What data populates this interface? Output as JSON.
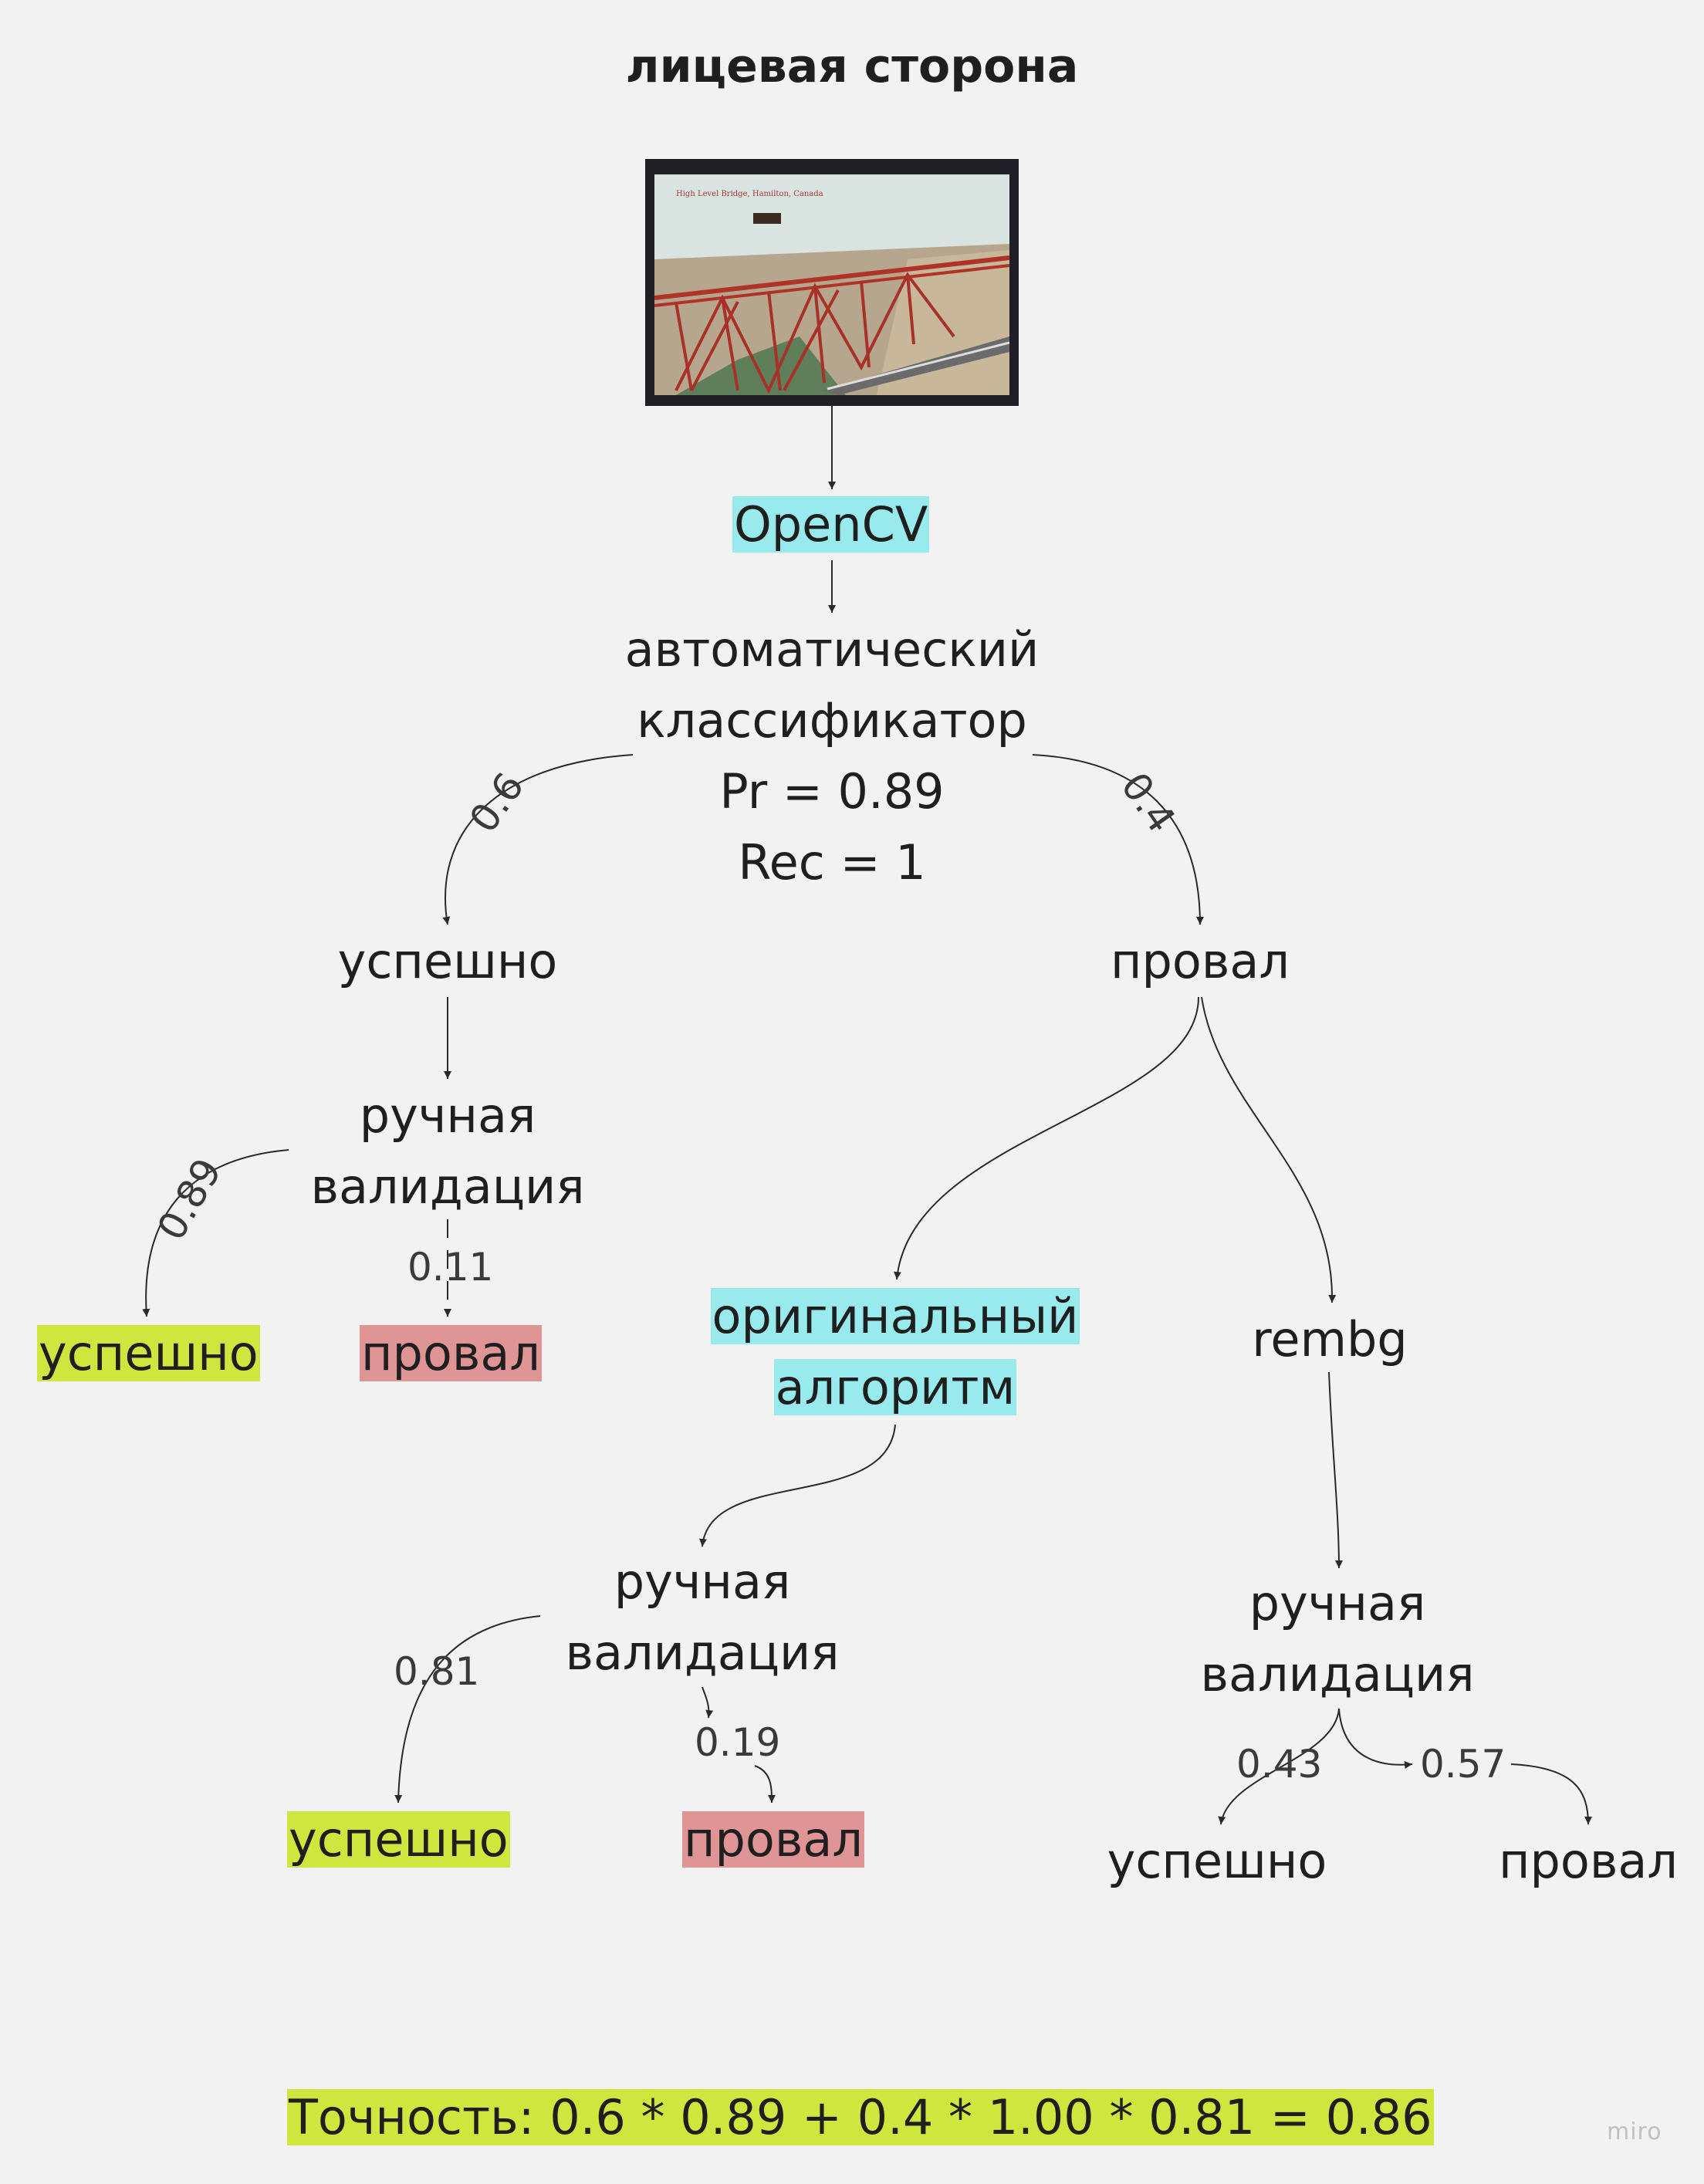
{
  "title": "лицевая сторона",
  "image": {
    "caption": "High Level Bridge, Hamilton, Canada"
  },
  "nodes": {
    "opencv": "OpenCV",
    "classifier": [
      "автоматический",
      "классификатор",
      "Pr = 0.89",
      "Rec = 1"
    ],
    "success_1": "успешно",
    "fail_1": "провал",
    "manual_validation_1": [
      "ручная",
      "валидация"
    ],
    "success_2": "успешно",
    "fail_2": "провал",
    "original_algorithm": [
      "оригинальный",
      "алгоритм"
    ],
    "rembg": "rembg",
    "manual_validation_2": [
      "ручная",
      "валидация"
    ],
    "manual_validation_3": [
      "ручная",
      "валидация"
    ],
    "success_3": "успешно",
    "fail_3": "провал",
    "success_4": "успешно",
    "fail_4": "провал"
  },
  "edge_labels": {
    "to_success": "0.6",
    "to_fail": "0.4",
    "mv1_success": "0.89",
    "mv1_fail": "0.11",
    "mv2_success": "0.81",
    "mv2_fail": "0.19",
    "mv3_success": "0.43",
    "mv3_fail": "0.57"
  },
  "accuracy": "Точность: 0.6 * 0.89 + 0.4 * 1.00 * 0.81 = 0.86",
  "watermark": "miro",
  "colors": {
    "background": "#f2f2f2",
    "cyan_highlight": "#98eaed",
    "green_highlight": "#cfe63f",
    "red_highlight": "#df9595"
  }
}
